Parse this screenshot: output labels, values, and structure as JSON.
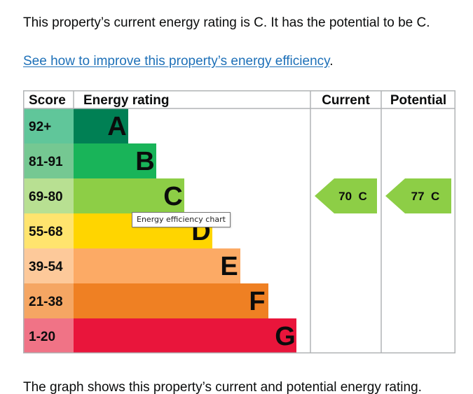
{
  "intro_text": "This property’s current energy rating is C. It has the potential to be C.",
  "improve_link": "See how to improve this property’s energy efficiency",
  "improve_suffix": ".",
  "outro_text": "The graph shows this property’s current and potential energy rating.",
  "tooltip_text": "Energy efficiency chart",
  "chart_data": {
    "type": "bar",
    "headers": {
      "score": "Score",
      "rating": "Energy rating",
      "current": "Current",
      "potential": "Potential"
    },
    "bands": [
      {
        "letter": "A",
        "range": "92+",
        "band_color": "#008054",
        "score_color": "#60c69a"
      },
      {
        "letter": "B",
        "range": "81-91",
        "band_color": "#19b459",
        "score_color": "#75c892"
      },
      {
        "letter": "C",
        "range": "69-80",
        "band_color": "#8dce46",
        "score_color": "#b8e092"
      },
      {
        "letter": "D",
        "range": "55-68",
        "band_color": "#ffd500",
        "score_color": "#ffe46e"
      },
      {
        "letter": "E",
        "range": "39-54",
        "band_color": "#fcaa65",
        "score_color": "#fdc99a"
      },
      {
        "letter": "F",
        "range": "21-38",
        "band_color": "#ef8023",
        "score_color": "#f5a663"
      },
      {
        "letter": "G",
        "range": "1-20",
        "band_color": "#e9153b",
        "score_color": "#f07386"
      }
    ],
    "current": {
      "score": 70,
      "letter": "C",
      "label": "70  C",
      "color": "#8dce46"
    },
    "potential": {
      "score": 77,
      "letter": "C",
      "label": "77  C",
      "color": "#8dce46"
    }
  }
}
